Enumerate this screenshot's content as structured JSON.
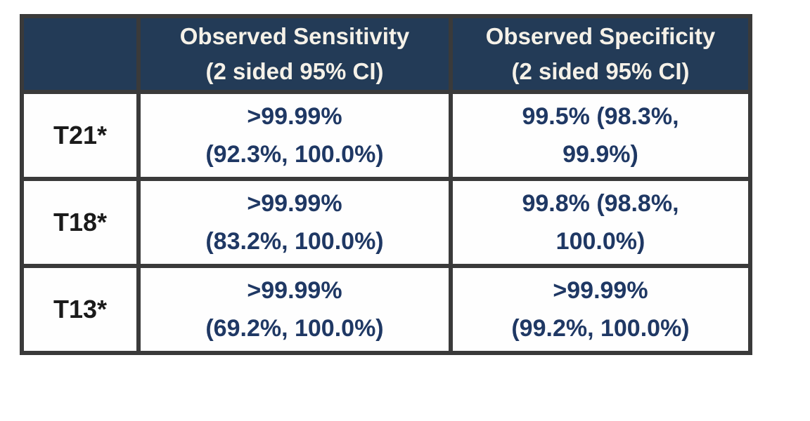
{
  "table": {
    "header": {
      "corner": "",
      "sensitivity": {
        "line1": "Observed Sensitivity",
        "line2": "(2 sided 95% CI)"
      },
      "specificity": {
        "line1": "Observed Specificity",
        "line2": "(2 sided 95% CI)"
      }
    },
    "rows": [
      {
        "label": "T21*",
        "sensitivity": [
          ">99.99%",
          "(92.3%, 100.0%)"
        ],
        "specificity": [
          "99.5% (98.3%,",
          "99.9%)"
        ]
      },
      {
        "label": "T18*",
        "sensitivity": [
          ">99.99%",
          "(83.2%, 100.0%)"
        ],
        "specificity": [
          "99.8% (98.8%,",
          "100.0%)"
        ]
      },
      {
        "label": "T13*",
        "sensitivity": [
          ">99.99%",
          "(69.2%, 100.0%)"
        ],
        "specificity": [
          ">99.99%",
          "(99.2%, 100.0%)"
        ]
      }
    ]
  },
  "colors": {
    "header_bg": "#233B57",
    "header_text": "#F5F1E8",
    "body_text": "#1F3864",
    "label_text": "#1A1A1A",
    "border": "#3A3A3A",
    "page_bg": "#FFFFFF"
  }
}
